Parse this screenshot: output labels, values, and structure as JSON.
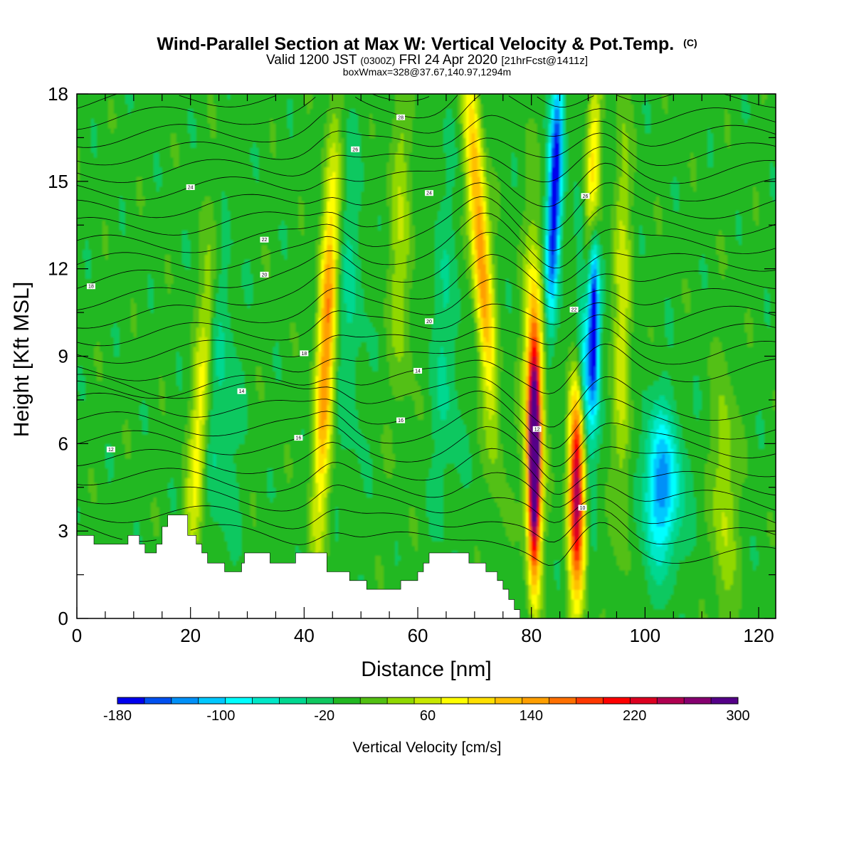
{
  "chart_data": {
    "type": "heatmap",
    "title": "Wind-Parallel Section at Max W: Vertical Velocity & Pot.Temp.",
    "title_mark": "(C)",
    "subtitle_parts": [
      "Valid 1200 JST ",
      "(0300Z)",
      " FRI 24 Apr 2020 ",
      "[21hrFcst@1411z]"
    ],
    "subtitle2": "boxWmax=328@37.67,140.97,1294m",
    "xlabel": "Distance [nm]",
    "ylabel": "Height [Kft MSL]",
    "xlim": [
      0,
      123
    ],
    "ylim": [
      0,
      18
    ],
    "x_ticks": [
      "0",
      "20",
      "40",
      "60",
      "80",
      "100",
      "120"
    ],
    "y_ticks": [
      "0",
      "3",
      "6",
      "9",
      "12",
      "15",
      "18"
    ],
    "colorbar": {
      "title": "Vertical Velocity [cm/s]",
      "min": -180,
      "max": 300,
      "step": 20,
      "tick_labels": [
        "-180",
        "-100",
        "-20",
        "60",
        "140",
        "220",
        "300"
      ],
      "colors": [
        "#0000ee",
        "#0050f0",
        "#0090f8",
        "#00c8ff",
        "#00ffff",
        "#00e8c8",
        "#00d890",
        "#10c860",
        "#22b822",
        "#52c012",
        "#90d800",
        "#c8e800",
        "#ffff00",
        "#ffe000",
        "#ffbf00",
        "#ff9f00",
        "#ff7000",
        "#ff3800",
        "#ff0000",
        "#dd0020",
        "#b00050",
        "#860070",
        "#550088"
      ]
    },
    "updraft_cores": [
      {
        "x": 21.5,
        "w_max": 90
      },
      {
        "x": 44.5,
        "w_max": 160
      },
      {
        "x": 71,
        "w_max": 160
      },
      {
        "x": 80.5,
        "w_max": 300
      },
      {
        "x": 88,
        "w_max": 240
      },
      {
        "x": 96,
        "w_max": 70
      }
    ],
    "downdraft_cores": [
      {
        "x": 84,
        "w_min": -180
      },
      {
        "x": 91,
        "w_min": -160
      },
      {
        "x": 103,
        "w_min": -100
      }
    ],
    "terrain_kft": [
      [
        0,
        2.85
      ],
      [
        3,
        2.85
      ],
      [
        3,
        2.55
      ],
      [
        9,
        2.55
      ],
      [
        9,
        2.85
      ],
      [
        11,
        2.85
      ],
      [
        11,
        2.55
      ],
      [
        12,
        2.55
      ],
      [
        12,
        2.25
      ],
      [
        14,
        2.25
      ],
      [
        14,
        2.55
      ],
      [
        15,
        2.55
      ],
      [
        15,
        3.15
      ],
      [
        16,
        3.15
      ],
      [
        16,
        3.55
      ],
      [
        19.5,
        3.55
      ],
      [
        19.5,
        2.85
      ],
      [
        21,
        2.85
      ],
      [
        21,
        2.55
      ],
      [
        22,
        2.55
      ],
      [
        22,
        2.25
      ],
      [
        23,
        2.25
      ],
      [
        23,
        1.9
      ],
      [
        26,
        1.9
      ],
      [
        26,
        1.6
      ],
      [
        29,
        1.6
      ],
      [
        29,
        1.9
      ],
      [
        29.5,
        1.9
      ],
      [
        29.5,
        2.25
      ],
      [
        34,
        2.25
      ],
      [
        34,
        1.9
      ],
      [
        38.5,
        1.9
      ],
      [
        38.5,
        2.25
      ],
      [
        44,
        2.25
      ],
      [
        44,
        1.6
      ],
      [
        48,
        1.6
      ],
      [
        48,
        1.3
      ],
      [
        51,
        1.3
      ],
      [
        51,
        1.0
      ],
      [
        57,
        1.0
      ],
      [
        57,
        1.3
      ],
      [
        60,
        1.3
      ],
      [
        60,
        1.6
      ],
      [
        61,
        1.6
      ],
      [
        61,
        1.9
      ],
      [
        62,
        1.9
      ],
      [
        62,
        2.25
      ],
      [
        69,
        2.25
      ],
      [
        69,
        1.9
      ],
      [
        72,
        1.9
      ],
      [
        72,
        1.6
      ],
      [
        74,
        1.6
      ],
      [
        74,
        1.3
      ],
      [
        75,
        1.3
      ],
      [
        75,
        1.0
      ],
      [
        76,
        1.0
      ],
      [
        76,
        0.65
      ],
      [
        77,
        0.65
      ],
      [
        77,
        0.3
      ],
      [
        78,
        0.3
      ],
      [
        78,
        0
      ]
    ],
    "isotherm_labels": [
      "12",
      "12",
      "14",
      "14",
      "16",
      "16",
      "18",
      "18",
      "20",
      "20",
      "22",
      "22",
      "24",
      "24",
      "26",
      "26",
      "28",
      "10"
    ]
  }
}
